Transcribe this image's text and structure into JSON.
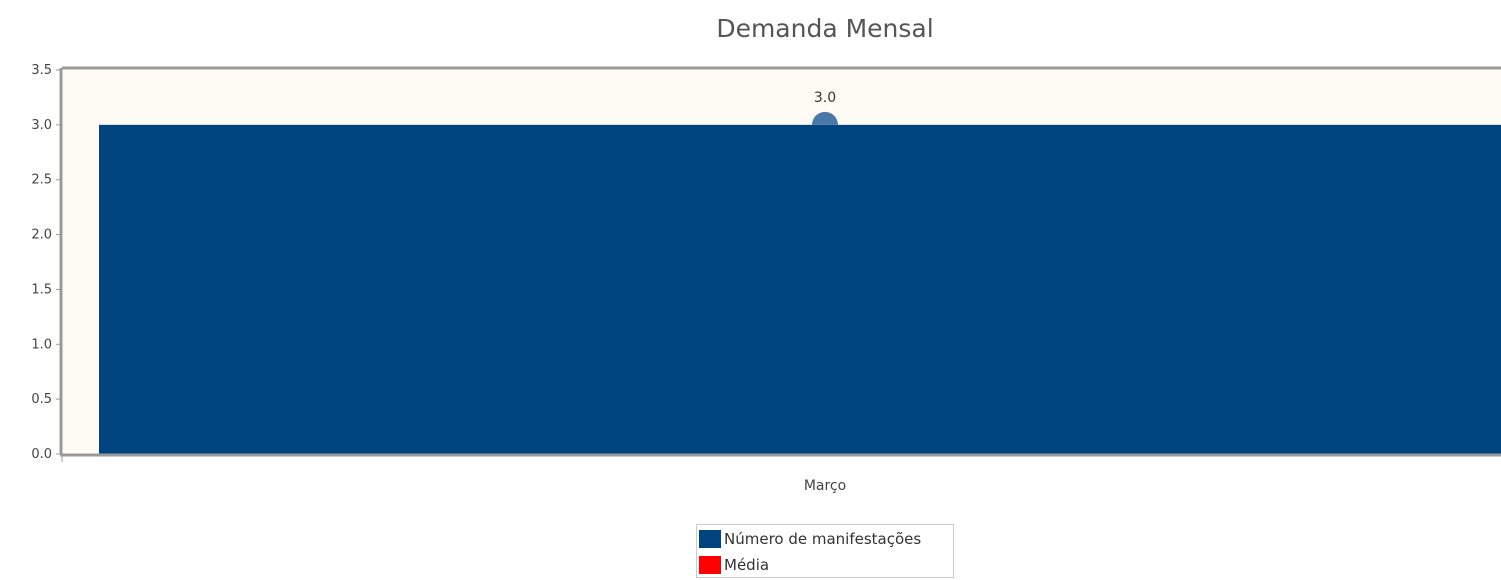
{
  "chart_data": {
    "type": "bar",
    "title": "Demanda Mensal",
    "categories": [
      "Março"
    ],
    "series": [
      {
        "name": "Número de manifestações",
        "type": "bar",
        "values": [
          3.0
        ],
        "color": "#00447f"
      },
      {
        "name": "Média",
        "type": "line",
        "values": [
          3.0
        ],
        "color": "#ff0000"
      }
    ],
    "data_labels": [
      "3.0"
    ],
    "ylim": [
      0,
      3.5
    ],
    "yticks": [
      "0.0",
      "0.5",
      "1.0",
      "1.5",
      "2.0",
      "2.5",
      "3.0",
      "3.5"
    ],
    "xlabel": "",
    "ylabel": "",
    "grid": false,
    "legend_position": "bottom",
    "plot_background": "#fdfbf3",
    "marker_color": "#4a78a8"
  }
}
